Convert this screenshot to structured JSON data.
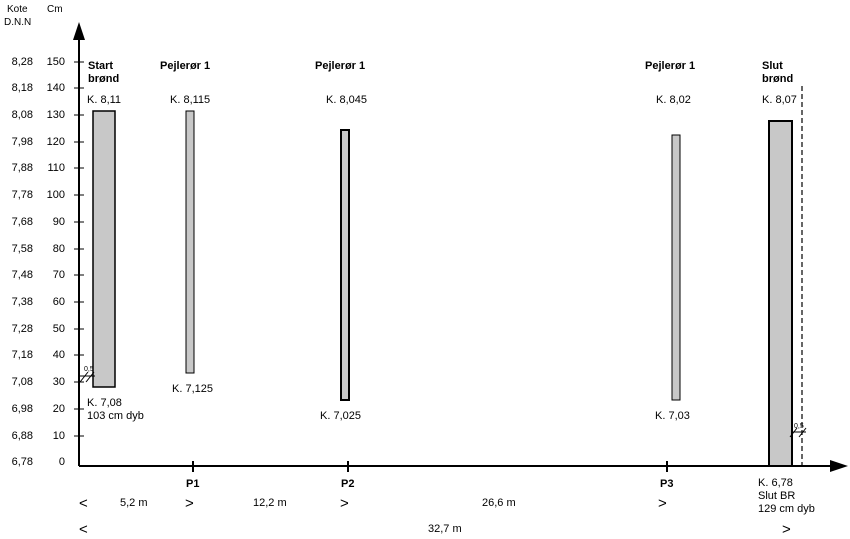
{
  "headers": {
    "kote_line1": "Kote",
    "kote_line2": "D.N.N",
    "cm": "Cm"
  },
  "scale": {
    "kote": [
      "8,28",
      "8,18",
      "8,08",
      "7,98",
      "7,88",
      "7,78",
      "7,68",
      "7,58",
      "7,48",
      "7,38",
      "7,28",
      "7,18",
      "7,08",
      "6,98",
      "6,88",
      "6,78"
    ],
    "cm": [
      "150",
      "140",
      "130",
      "120",
      "110",
      "100",
      "90",
      "80",
      "70",
      "60",
      "50",
      "40",
      "30",
      "20",
      "10",
      "0"
    ]
  },
  "columns": [
    {
      "title1": "Start",
      "title2": "brønd",
      "top": "K. 8,11",
      "bottom1": "K. 7,08",
      "bottom2": "103 cm dyb"
    },
    {
      "title1": "Pejlerør 1",
      "top": "K. 8,115",
      "bottom1": "K. 7,125"
    },
    {
      "title1": "Pejlerør 1",
      "top": "K. 8,045",
      "bottom1": "K. 7,025"
    },
    {
      "title1": "Pejlerør 1",
      "top": "K. 8,02",
      "bottom1": "K. 7,03"
    },
    {
      "title1": "Slut",
      "title2": "brønd",
      "top": "K. 8,07",
      "bottom1": "K. 6,78",
      "bottom2": "Slut BR",
      "bottom3": "129 cm dyb"
    }
  ],
  "points": [
    "P1",
    "P2",
    "P3"
  ],
  "distances": {
    "d1": "5,2 m",
    "d2": "12,2 m",
    "d3": "26,6 m",
    "total": "32,7 m"
  },
  "markers": {
    "left": "<",
    "right": ">",
    "small_dim": "0,5"
  },
  "colors": {
    "bar_fill": "#c8c8c8",
    "line": "#000000"
  }
}
